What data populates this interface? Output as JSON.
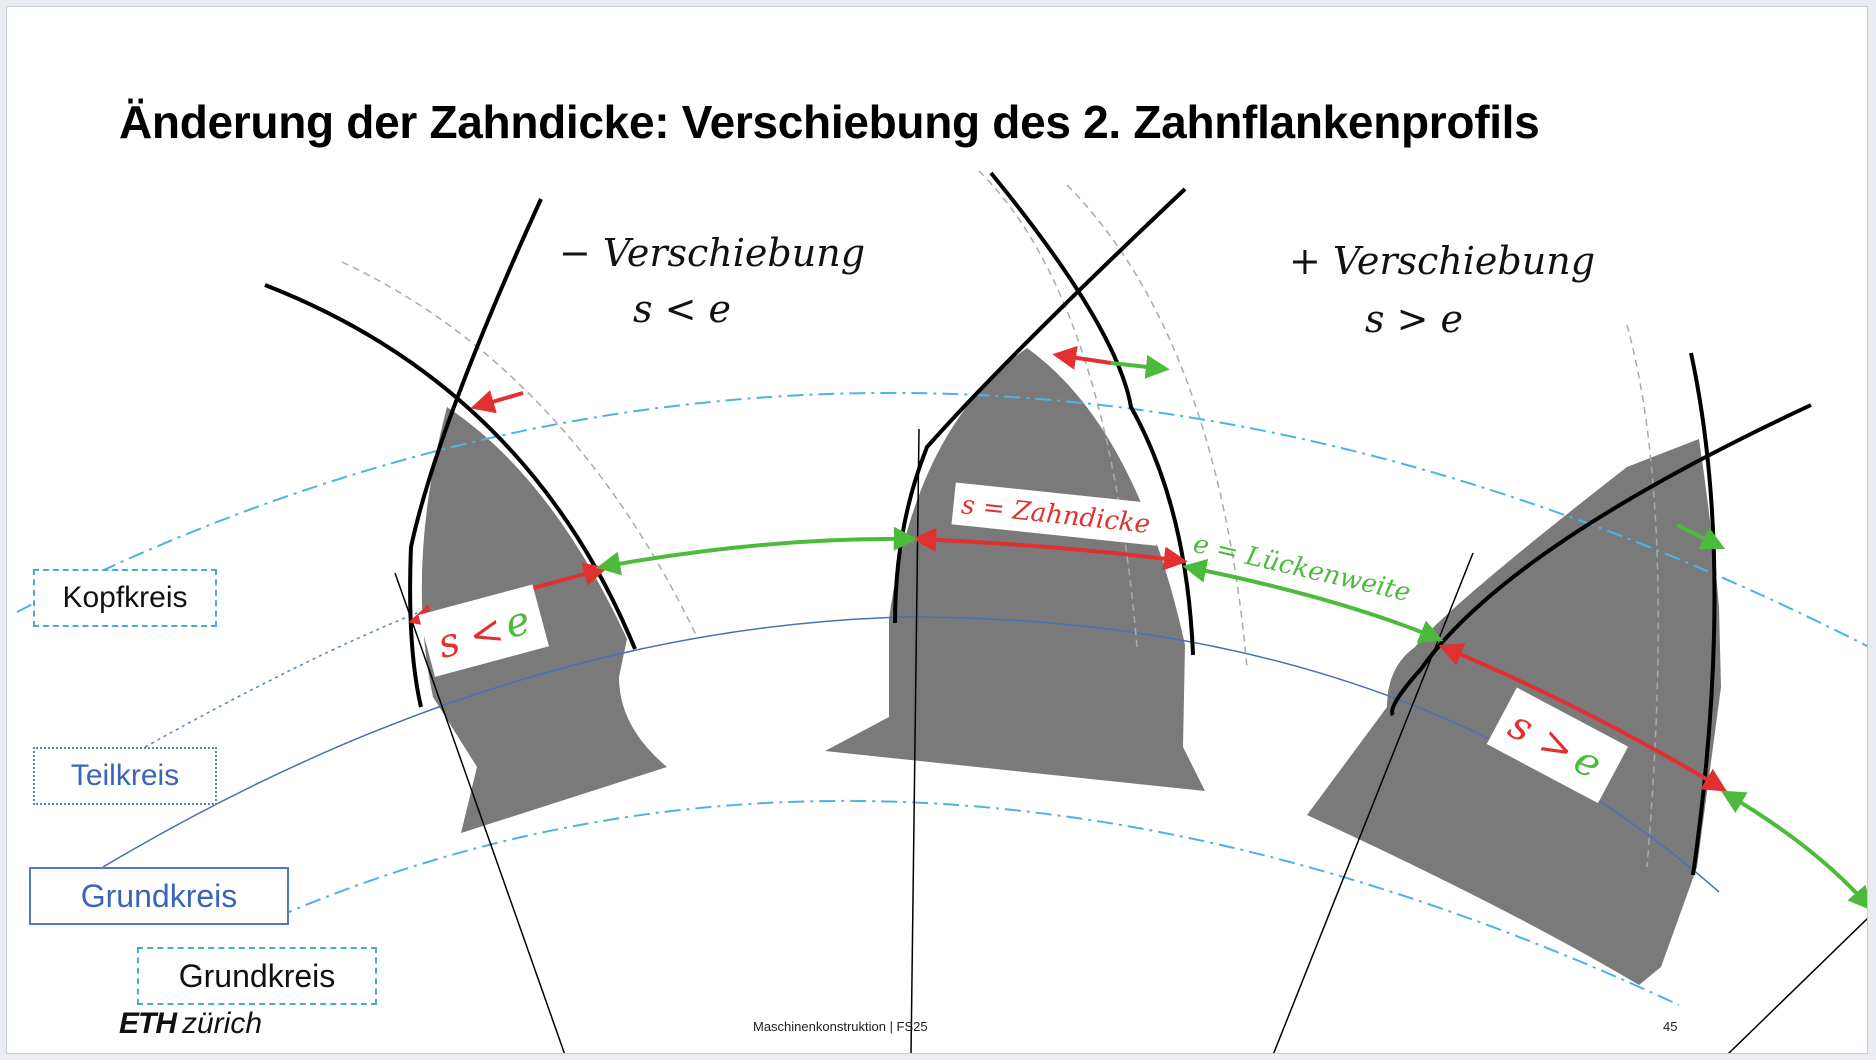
{
  "title": "Änderung der Zahndicke: Verschiebung des 2. Zahnflankenprofils",
  "minus": {
    "label": "− Verschiebung",
    "relation": "s < e"
  },
  "plus": {
    "label": "+ Verschiebung",
    "relation": "s > e"
  },
  "annotations": {
    "s_label": "s = Zahndicke",
    "e_label": "e = Lückenweite",
    "s_lt_e": {
      "s": "s",
      "op": "<",
      "e": "e"
    },
    "s_gt_e": {
      "s": "s",
      "op": ">",
      "e": "e"
    }
  },
  "legend": {
    "kopfkreis": "Kopfkreis",
    "teilkreis": "Teilkreis",
    "grundkreis_solid": "Grundkreis",
    "grundkreis_dashed": "Grundkreis"
  },
  "footer": {
    "logo_eth": "ETH",
    "logo_zurich": "zürich",
    "course": "Maschinenkonstruktion | FS25",
    "page": "45"
  },
  "colors": {
    "tooth_fill": "#7a7a7a",
    "red": "#e03030",
    "green": "#4cbb3c",
    "kopfkreis_line": "#4db3e6",
    "teilkreis_line": "#4a6fb5",
    "label_blue": "#3a64b8"
  }
}
